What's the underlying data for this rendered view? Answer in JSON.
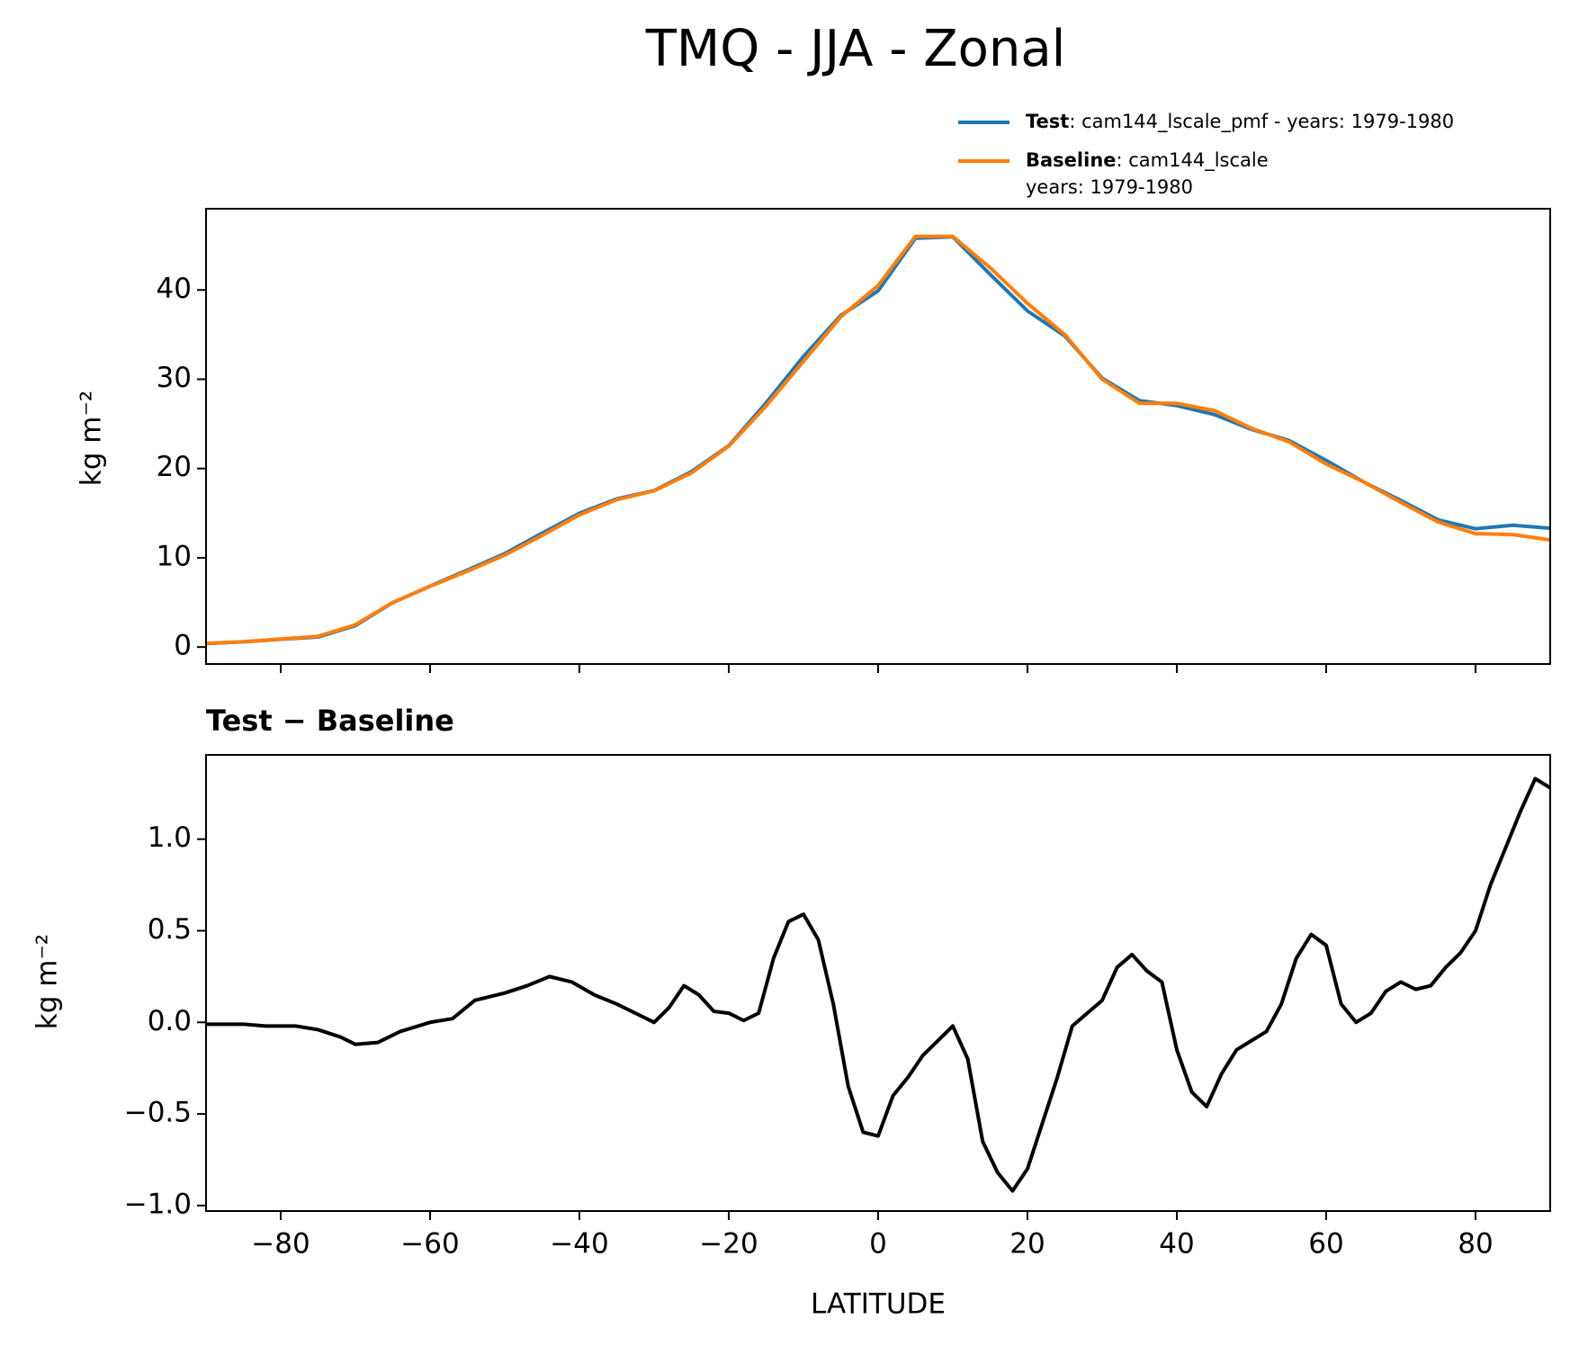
{
  "chart_data": [
    {
      "type": "line",
      "title": "TMQ - JJA - Zonal",
      "ylabel": "kg m⁻²",
      "x": [
        -90,
        -85,
        -80,
        -75,
        -70,
        -65,
        -60,
        -55,
        -50,
        -45,
        -40,
        -35,
        -30,
        -25,
        -20,
        -15,
        -10,
        -5,
        0,
        5,
        10,
        15,
        20,
        25,
        30,
        35,
        40,
        45,
        50,
        55,
        60,
        65,
        70,
        75,
        80,
        85,
        90
      ],
      "series": [
        {
          "name": "Test",
          "description": [
            ": cam144_lscale_pmf - years: 1979-1980"
          ],
          "color": "#1f77b4",
          "values": [
            0.38,
            0.58,
            0.87,
            1.12,
            2.4,
            4.97,
            6.82,
            8.63,
            10.47,
            12.75,
            14.98,
            16.6,
            17.52,
            19.65,
            22.55,
            27.35,
            32.55,
            37.15,
            39.9,
            45.8,
            45.95,
            41.75,
            37.65,
            34.85,
            30.12,
            27.6,
            27.05,
            26.05,
            24.38,
            23.15,
            20.9,
            18.5,
            16.42,
            14.25,
            13.25,
            13.65,
            13.3
          ]
        },
        {
          "name": "Baseline",
          "description": [
            ": cam144_lscale",
            "years: 1979-1980"
          ],
          "color": "#ff7f0e",
          "values": [
            0.4,
            0.6,
            0.9,
            1.2,
            2.5,
            5,
            6.8,
            8.5,
            10.3,
            12.5,
            14.8,
            16.5,
            17.5,
            19.5,
            22.5,
            27,
            32,
            37,
            40.5,
            46,
            46,
            42.5,
            38.5,
            35,
            30,
            27.3,
            27.3,
            26.5,
            24.5,
            23,
            20.5,
            18.5,
            16.2,
            14,
            12.7,
            12.6,
            12
          ]
        }
      ],
      "xlim": [
        -90,
        90
      ],
      "xticks": [
        -80,
        -60,
        -40,
        -20,
        0,
        20,
        40,
        60,
        80
      ],
      "ylim": [
        -1.9,
        49.1
      ],
      "yticks": [
        0,
        10,
        20,
        30,
        40
      ]
    },
    {
      "type": "line",
      "title": "Test − Baseline",
      "xlabel": "LATITUDE",
      "ylabel": "kg m⁻²",
      "x": [
        -90,
        -85,
        -82,
        -78,
        -75,
        -72,
        -70,
        -67,
        -64,
        -60,
        -57,
        -54,
        -50,
        -47,
        -44,
        -41,
        -38,
        -35,
        -32,
        -30,
        -28,
        -26,
        -24,
        -22,
        -20,
        -18,
        -16,
        -14,
        -12,
        -10,
        -8,
        -6,
        -4,
        -2,
        0,
        2,
        4,
        6,
        8,
        10,
        12,
        14,
        16,
        18,
        20,
        22,
        24,
        26,
        28,
        30,
        32,
        34,
        36,
        38,
        40,
        42,
        44,
        46,
        48,
        50,
        52,
        54,
        56,
        58,
        60,
        62,
        64,
        66,
        68,
        70,
        72,
        74,
        76,
        78,
        80,
        82,
        84,
        86,
        88,
        90
      ],
      "series": [
        {
          "color": "#000000",
          "values": [
            -0.01,
            -0.01,
            -0.02,
            -0.02,
            -0.04,
            -0.08,
            -0.12,
            -0.11,
            -0.05,
            0.0,
            0.02,
            0.12,
            0.16,
            0.2,
            0.25,
            0.22,
            0.15,
            0.1,
            0.04,
            0.0,
            0.08,
            0.2,
            0.15,
            0.06,
            0.05,
            0.01,
            0.05,
            0.35,
            0.55,
            0.59,
            0.45,
            0.1,
            -0.35,
            -0.6,
            -0.62,
            -0.4,
            -0.3,
            -0.18,
            -0.1,
            -0.02,
            -0.2,
            -0.65,
            -0.82,
            -0.92,
            -0.8,
            -0.55,
            -0.3,
            -0.02,
            0.05,
            0.12,
            0.3,
            0.37,
            0.28,
            0.22,
            -0.15,
            -0.38,
            -0.46,
            -0.28,
            -0.15,
            -0.1,
            -0.05,
            0.1,
            0.35,
            0.48,
            0.42,
            0.1,
            0.0,
            0.05,
            0.17,
            0.22,
            0.18,
            0.2,
            0.3,
            0.38,
            0.5,
            0.75,
            0.95,
            1.15,
            1.33,
            1.28
          ]
        }
      ],
      "xlim": [
        -90,
        90
      ],
      "xticks": [
        {
          "value": -80,
          "label": "−80"
        },
        {
          "value": -60,
          "label": "−60"
        },
        {
          "value": -40,
          "label": "−40"
        },
        {
          "value": -20,
          "label": "−20"
        },
        0,
        20,
        40,
        60,
        80
      ],
      "ylim": [
        -1.03,
        1.46
      ],
      "yticks": [
        {
          "value": -1.0,
          "label": "−1.0"
        },
        {
          "value": -0.5,
          "label": "−0.5"
        },
        {
          "value": 0.0,
          "label": "0.0"
        },
        {
          "value": 0.5,
          "label": "0.5"
        },
        {
          "value": 1.0,
          "label": "1.0"
        }
      ]
    }
  ]
}
